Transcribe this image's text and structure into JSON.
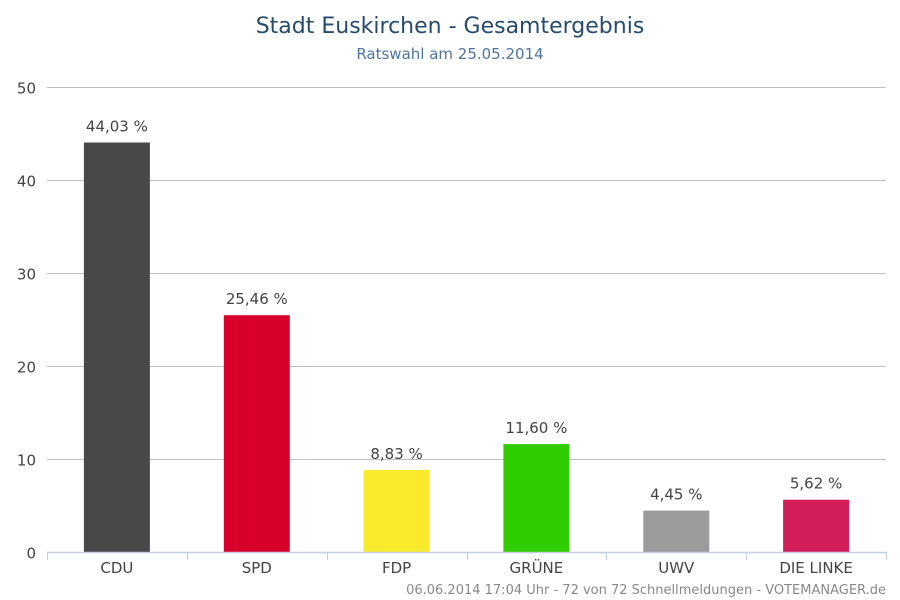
{
  "title": "Stadt Euskirchen - Gesamtergebnis",
  "subtitle": "Ratswahl am 25.05.2014",
  "footer": "06.06.2014 17:04 Uhr - 72 von 72 Schnellmeldungen - VOTEMANAGER.de",
  "colors": {
    "title": "#274b6d",
    "subtitle": "#4d759e",
    "grid": "#c0c0c0",
    "axis": "#c0d0e0",
    "tick_label": "#444444",
    "data_label": "#444444"
  },
  "chart_data": {
    "type": "bar",
    "categories": [
      "CDU",
      "SPD",
      "FDP",
      "GRÜNE",
      "UWV",
      "DIE LINKE"
    ],
    "values": [
      44.03,
      25.46,
      8.83,
      11.6,
      4.45,
      5.62
    ],
    "data_labels": [
      "44,03 %",
      "25,46 %",
      "8,83 %",
      "11,60 %",
      "4,45 %",
      "5,62 %"
    ],
    "bar_colors": [
      "#484848",
      "#d8002b",
      "#f9ea2b",
      "#2fcc00",
      "#9b9b9b",
      "#d21d58"
    ],
    "ylim": [
      0,
      50
    ],
    "yticks": [
      0,
      10,
      20,
      30,
      40,
      50
    ],
    "grid": true,
    "legend": "none"
  }
}
